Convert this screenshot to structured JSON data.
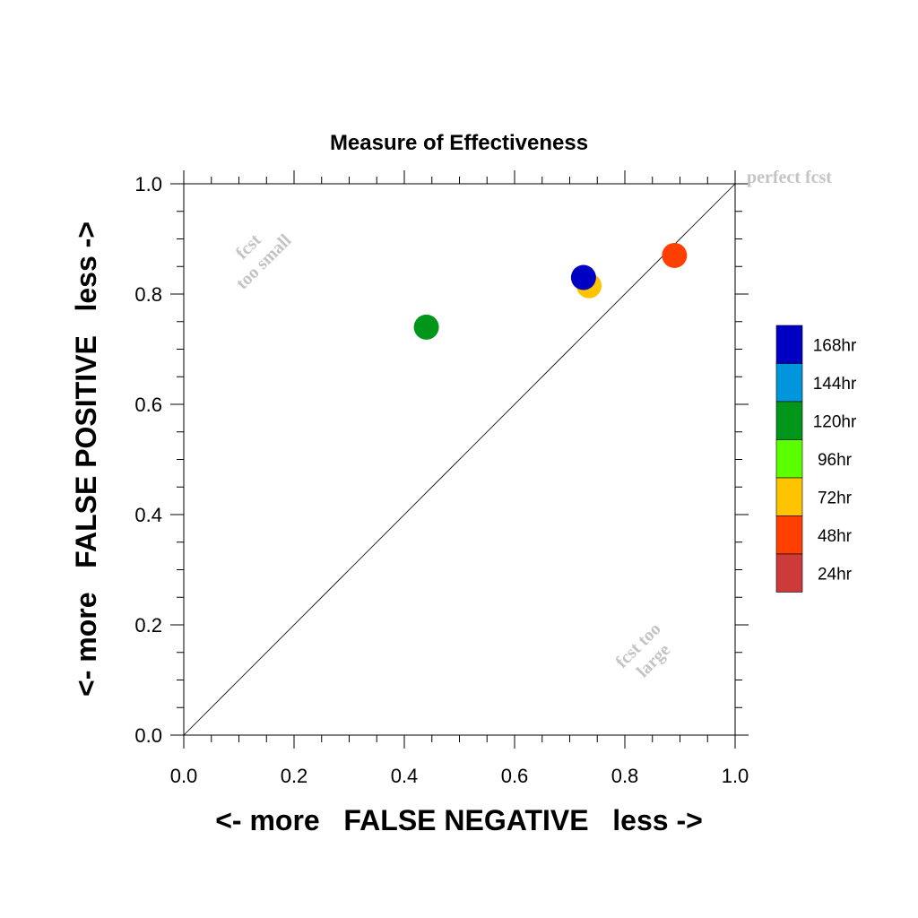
{
  "chart_data": {
    "type": "scatter",
    "title": "Measure of Effectiveness",
    "xlabel": "<- more   FALSE NEGATIVE   less ->",
    "ylabel": "<- more   FALSE POSITIVE   less ->",
    "xlim": [
      0.0,
      1.0
    ],
    "ylim": [
      0.0,
      1.0
    ],
    "xticks": [
      "0.0",
      "0.2",
      "0.4",
      "0.6",
      "0.8",
      "1.0"
    ],
    "yticks": [
      "0.0",
      "0.2",
      "0.4",
      "0.6",
      "0.8",
      "1.0"
    ],
    "grid": false,
    "diagonal_reference_line": true,
    "annotations": {
      "perfect": "perfect fcst",
      "too_small_line1": "fcst",
      "too_small_line2": "too small",
      "too_large_line1": "fcst too",
      "too_large_line2": "large"
    },
    "legend": [
      {
        "label": "168hr",
        "color": "#0000c4"
      },
      {
        "label": "144hr",
        "color": "#0096dc"
      },
      {
        "label": "120hr",
        "color": "#00961a"
      },
      {
        "label": "96hr",
        "color": "#5cff00"
      },
      {
        "label": "72hr",
        "color": "#ffc400"
      },
      {
        "label": "48hr",
        "color": "#ff4000"
      },
      {
        "label": "24hr",
        "color": "#cc3a3a"
      }
    ],
    "series": [
      {
        "name": "120hr",
        "color": "#00961a",
        "x": 0.44,
        "y": 0.74
      },
      {
        "name": "72hr",
        "color": "#ffc400",
        "x": 0.735,
        "y": 0.815
      },
      {
        "name": "168hr",
        "color": "#0000c4",
        "x": 0.725,
        "y": 0.83
      },
      {
        "name": "48hr",
        "color": "#ff4000",
        "x": 0.89,
        "y": 0.87
      }
    ]
  }
}
